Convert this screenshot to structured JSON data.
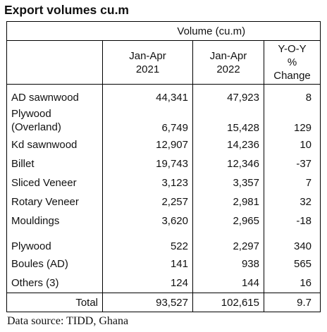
{
  "title": "Export volumes cu.m",
  "table": {
    "group_header": "Volume (cu.m)",
    "columns": [
      {
        "line1": "Jan-Apr",
        "line2": "2021"
      },
      {
        "line1": "Jan-Apr",
        "line2": "2022"
      },
      {
        "line1": "Y-O-Y",
        "line2": "%",
        "line3": "Change"
      }
    ],
    "rows": [
      {
        "label": "AD sawnwood",
        "v2021": "44,341",
        "v2022": "47,923",
        "yoy": "8"
      },
      {
        "label": "Plywood",
        "label2": "(Overland)",
        "v2021": "6,749",
        "v2022": "15,428",
        "yoy": "129"
      },
      {
        "label": "Kd sawnwood",
        "v2021": "12,907",
        "v2022": "14,236",
        "yoy": "10"
      },
      {
        "label": "Billet",
        "v2021": "19,743",
        "v2022": "12,346",
        "yoy": "-37"
      },
      {
        "label": "Sliced Veneer",
        "v2021": "3,123",
        "v2022": "3,357",
        "yoy": "7"
      },
      {
        "label": "Rotary Veneer",
        "v2021": "2,257",
        "v2022": "2,981",
        "yoy": "32"
      },
      {
        "label": "Mouldings",
        "v2021": "3,620",
        "v2022": "2,965",
        "yoy": "-18"
      },
      {
        "label": "Plywood",
        "v2021": "522",
        "v2022": "2,297",
        "yoy": "340"
      },
      {
        "label": "Boules (AD)",
        "v2021": "141",
        "v2022": "938",
        "yoy": "565"
      },
      {
        "label": "Others (3)",
        "v2021": "124",
        "v2022": "144",
        "yoy": "16"
      }
    ],
    "total": {
      "label": "Total",
      "v2021": "93,527",
      "v2022": "102,615",
      "yoy": "9.7"
    }
  },
  "source": "Data source: TIDD, Ghana"
}
